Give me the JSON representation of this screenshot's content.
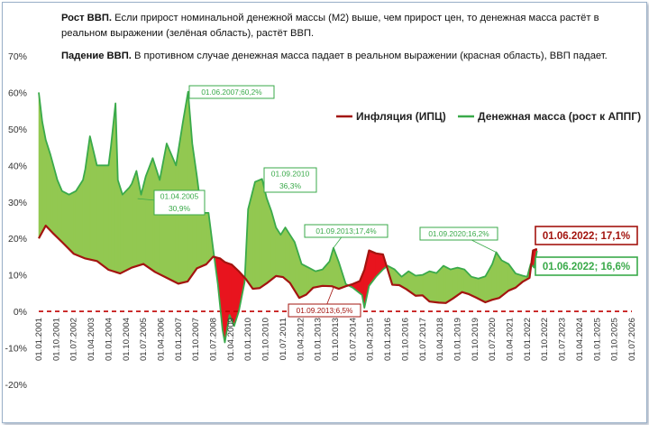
{
  "notes": {
    "growth_bold": "Рост ВВП.",
    "growth_text": "Если прирост номинальной денежной массы (М2) выше, чем прирост цен,  то денежная масса растёт в реальном выражении (зелёная область), растёт ВВП.",
    "fall_bold": "Падение ВВП.",
    "fall_text": "В противном случае денежная масса падает в реальном выражении (красная область), ВВП падает."
  },
  "colors": {
    "inflation": "#a3140f",
    "money": "#3aaa4a",
    "green_fill": "#92c851",
    "red_fill": "#e8141e",
    "zero_line": "#c00000",
    "axis_text": "#333333"
  },
  "chart_data": {
    "type": "area",
    "ylim": [
      -20,
      70
    ],
    "yticks": [
      "70%",
      "60%",
      "50%",
      "40%",
      "30%",
      "20%",
      "10%",
      "0%",
      "-10%",
      "-20%"
    ],
    "xlim": [
      2001.0,
      2026.5
    ],
    "xticks": [
      "01.01.2001",
      "01.10.2001",
      "01.07.2002",
      "01.04.2003",
      "01.01.2004",
      "01.10.2004",
      "01.07.2005",
      "01.04.2006",
      "01.01.2007",
      "01.10.2007",
      "01.07.2008",
      "01.04.2009",
      "01.01.2010",
      "01.10.2010",
      "01.07.2011",
      "01.04.2012",
      "01.01.2013",
      "01.10.2013",
      "01.07.2014",
      "01.04.2015",
      "01.01.2016",
      "01.10.2016",
      "01.07.2017",
      "01.04.2018",
      "01.01.2019",
      "01.10.2019",
      "01.07.2020",
      "01.04.2021",
      "01.01.2022",
      "01.10.2022",
      "01.07.2023",
      "01.04.2024",
      "01.01.2025",
      "01.10.2025",
      "01.07.2026"
    ],
    "grid": false,
    "legend_position": "top-right",
    "series": [
      {
        "name": "Инфляция (ИПЦ)",
        "x": [
          2001.0,
          2001.3,
          2001.6,
          2002.0,
          2002.5,
          2003.0,
          2003.5,
          2004.0,
          2004.5,
          2005.0,
          2005.5,
          2006.0,
          2006.5,
          2007.0,
          2007.4,
          2007.8,
          2008.2,
          2008.5,
          2008.8,
          2009.0,
          2009.3,
          2009.6,
          2009.9,
          2010.2,
          2010.5,
          2010.8,
          2011.2,
          2011.5,
          2011.8,
          2012.2,
          2012.5,
          2012.8,
          2013.2,
          2013.6,
          2013.9,
          2014.2,
          2014.5,
          2014.8,
          2015.0,
          2015.2,
          2015.5,
          2015.8,
          2016.2,
          2016.5,
          2016.8,
          2017.2,
          2017.5,
          2017.8,
          2018.2,
          2018.5,
          2018.8,
          2019.2,
          2019.5,
          2019.8,
          2020.2,
          2020.5,
          2020.8,
          2021.2,
          2021.5,
          2021.8,
          2022.1,
          2022.25,
          2022.42
        ],
        "values": [
          20.0,
          23.5,
          21.5,
          19.0,
          15.8,
          14.5,
          13.8,
          11.4,
          10.4,
          12.0,
          13.0,
          10.8,
          9.2,
          7.6,
          8.2,
          11.8,
          12.9,
          15.0,
          14.5,
          13.5,
          12.8,
          11.0,
          8.9,
          6.2,
          6.4,
          7.7,
          9.7,
          9.4,
          7.8,
          3.7,
          4.6,
          6.5,
          7.0,
          6.9,
          6.2,
          6.9,
          7.5,
          8.3,
          11.4,
          16.7,
          15.9,
          15.6,
          7.3,
          7.2,
          6.1,
          4.3,
          4.4,
          2.7,
          2.4,
          2.3,
          3.5,
          5.3,
          4.7,
          3.8,
          2.5,
          3.2,
          3.7,
          5.7,
          6.5,
          8.1,
          9.2,
          16.7,
          17.1
        ]
      },
      {
        "name": "Денежная масса (рост к АППГ)",
        "x": [
          2001.0,
          2001.15,
          2001.3,
          2001.5,
          2001.8,
          2002.0,
          2002.3,
          2002.6,
          2002.9,
          2003.0,
          2003.2,
          2003.5,
          2003.75,
          2004.0,
          2004.1,
          2004.3,
          2004.4,
          2004.6,
          2004.9,
          2005.0,
          2005.2,
          2005.4,
          2005.6,
          2005.9,
          2006.2,
          2006.5,
          2006.9,
          2007.2,
          2007.42,
          2007.6,
          2007.8,
          2008.0,
          2008.3,
          2008.5,
          2008.7,
          2008.9,
          2009.0,
          2009.2,
          2009.4,
          2009.6,
          2009.85,
          2010.0,
          2010.3,
          2010.6,
          2010.8,
          2011.0,
          2011.2,
          2011.4,
          2011.6,
          2011.8,
          2012.0,
          2012.3,
          2012.6,
          2012.9,
          2013.2,
          2013.5,
          2013.67,
          2013.9,
          2014.2,
          2014.5,
          2014.7,
          2014.9,
          2015.0,
          2015.2,
          2015.5,
          2015.8,
          2016.0,
          2016.3,
          2016.6,
          2016.9,
          2017.2,
          2017.5,
          2017.8,
          2018.1,
          2018.4,
          2018.7,
          2019.0,
          2019.3,
          2019.6,
          2019.9,
          2020.2,
          2020.5,
          2020.67,
          2020.9,
          2021.2,
          2021.5,
          2021.8,
          2022.0,
          2022.15,
          2022.3,
          2022.42
        ],
        "values": [
          60.0,
          52.0,
          47.0,
          43.0,
          36.0,
          33.0,
          32.0,
          33.0,
          36.0,
          39.0,
          48.0,
          40.0,
          40.0,
          40.0,
          45.0,
          57.0,
          36.0,
          32.0,
          34.0,
          35.0,
          38.5,
          32.0,
          37.0,
          42.0,
          36.0,
          46.0,
          40.0,
          52.0,
          60.2,
          46.0,
          37.0,
          27.0,
          27.0,
          17.0,
          7.5,
          -5.0,
          -8.5,
          -1.0,
          -4.0,
          0.0,
          8.0,
          28.0,
          35.5,
          36.3,
          31.0,
          27.5,
          23.0,
          21.0,
          23.0,
          21.0,
          19.0,
          13.0,
          12.0,
          11.0,
          11.5,
          13.7,
          17.4,
          13.5,
          7.5,
          6.5,
          5.5,
          4.5,
          1.0,
          7.0,
          9.5,
          11.5,
          12.5,
          11.5,
          9.5,
          11.0,
          9.8,
          10.0,
          11.0,
          10.5,
          12.5,
          11.5,
          12.0,
          11.5,
          9.5,
          9.0,
          9.6,
          13.0,
          16.2,
          14.0,
          13.0,
          10.4,
          9.8,
          9.5,
          13.0,
          12.0,
          16.6
        ]
      }
    ],
    "annotations": [
      {
        "label": "01.06.2007;60,2%",
        "x": 2007.42,
        "y": 60.2
      },
      {
        "label": "01.04.2005\n30,9%",
        "x": 2005.25,
        "y": 30.9
      },
      {
        "label": "01.09.2010\n36,3%",
        "x": 2010.67,
        "y": 36.3
      },
      {
        "label": "01.09.2013;17,4%",
        "x": 2013.67,
        "y": 17.4
      },
      {
        "label": "01.09.2013;6,5%",
        "x": 2013.67,
        "y": 6.5
      },
      {
        "label": "01.09.2020;16,2%",
        "x": 2020.67,
        "y": 16.2
      },
      {
        "label": "01.06.2022; 17,1%",
        "x": 2022.42,
        "y": 17.1
      },
      {
        "label": "01.06.2022; 16,6%",
        "x": 2022.42,
        "y": 16.6
      }
    ],
    "zero_reference": "dashed"
  }
}
